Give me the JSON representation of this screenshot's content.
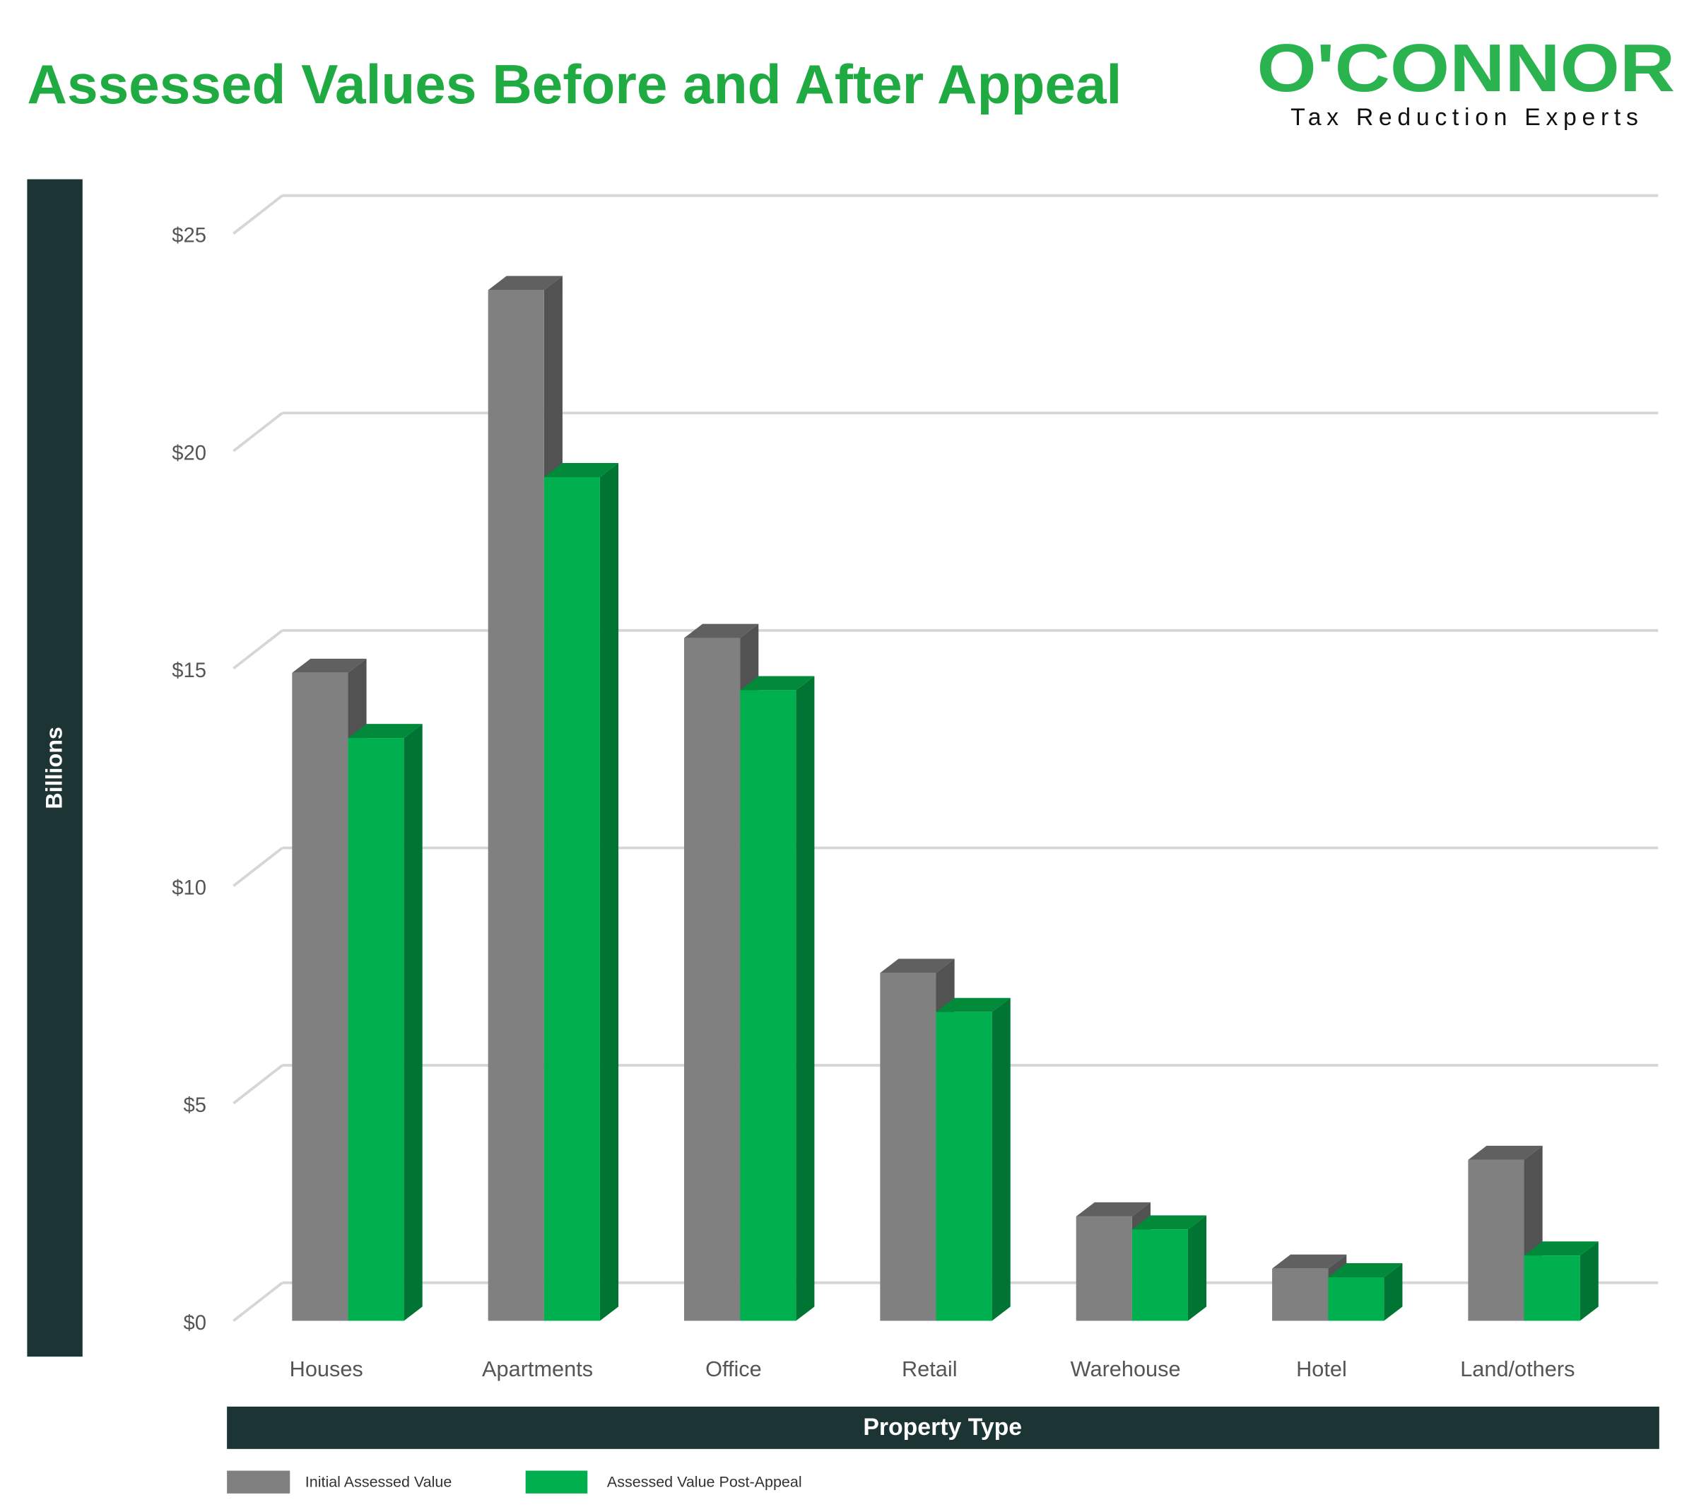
{
  "header": {
    "title": "Assessed Values Before and After Appeal",
    "logo_text": "O'CONNOR",
    "logo_tagline": "Tax Reduction Experts"
  },
  "colors": {
    "title": "#1faa42",
    "logo": "#2ab34f",
    "band": "#1c3434",
    "initial": "#808080",
    "initial_top": "#606060",
    "initial_side": "#525252",
    "post": "#00b04f",
    "post_top": "#008a3a",
    "post_side": "#007433",
    "grid": "#d6d6d6"
  },
  "chart_data": {
    "type": "bar",
    "title": "Assessed Values Before and After Appeal",
    "xlabel": "Property Type",
    "ylabel": "Billions",
    "ylim": [
      0,
      25
    ],
    "yticks": [
      0,
      5,
      10,
      15,
      20,
      25
    ],
    "ytick_labels": [
      "$0",
      "$5",
      "$10",
      "$15",
      "$20",
      "$25"
    ],
    "grid": true,
    "legend_position": "bottom-left",
    "categories": [
      "Houses",
      "Apartments",
      "Office",
      "Retail",
      "Warehouse",
      "Hotel",
      "Land/others"
    ],
    "series": [
      {
        "name": "Initial Assessed Value",
        "values": [
          14.9,
          23.7,
          15.7,
          8.0,
          2.4,
          1.2,
          3.7
        ]
      },
      {
        "name": "Assessed Value Post-Appeal",
        "values": [
          13.4,
          19.4,
          14.5,
          7.1,
          2.1,
          1.0,
          1.5
        ]
      }
    ]
  }
}
